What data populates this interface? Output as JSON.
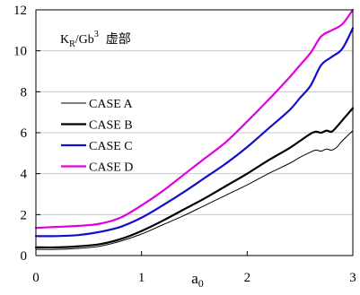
{
  "chart_data": {
    "type": "line",
    "title": "",
    "annotation": {
      "base": "K",
      "subscript": "R",
      "after": "/Gb",
      "superscript": "3",
      "suffix": "虚部"
    },
    "xlabel": {
      "base": "a",
      "subscript": "0"
    },
    "ylabel": "",
    "xlim": [
      0,
      3
    ],
    "ylim": [
      0,
      12
    ],
    "x_ticks": [
      0,
      1,
      2,
      3
    ],
    "y_ticks": [
      0,
      2,
      4,
      6,
      8,
      10,
      12
    ],
    "x_tick_labels": [
      "0",
      "1",
      "2",
      "3"
    ],
    "y_tick_labels": [
      "0",
      "2",
      "4",
      "6",
      "8",
      "10",
      "12"
    ],
    "grid": "horizontal",
    "legend_position": "left-middle",
    "series": [
      {
        "name": "CASE A",
        "color": "#000000",
        "width": 1,
        "x": [
          0,
          0.2,
          0.4,
          0.6,
          0.8,
          1.0,
          1.2,
          1.4,
          1.6,
          1.8,
          2.0,
          2.2,
          2.4,
          2.5,
          2.6,
          2.65,
          2.7,
          2.75,
          2.8,
          2.85,
          2.9,
          3.0
        ],
        "y": [
          0.3,
          0.3,
          0.35,
          0.45,
          0.7,
          1.05,
          1.5,
          1.95,
          2.45,
          2.95,
          3.45,
          4.0,
          4.5,
          4.8,
          5.05,
          5.15,
          5.1,
          5.2,
          5.15,
          5.3,
          5.6,
          6.1
        ]
      },
      {
        "name": "CASE B",
        "color": "#000000",
        "width": 2.2,
        "x": [
          0,
          0.2,
          0.4,
          0.6,
          0.8,
          1.0,
          1.2,
          1.4,
          1.6,
          1.8,
          2.0,
          2.2,
          2.4,
          2.5,
          2.6,
          2.65,
          2.7,
          2.75,
          2.8,
          2.85,
          2.9,
          3.0
        ],
        "y": [
          0.4,
          0.4,
          0.45,
          0.55,
          0.8,
          1.2,
          1.7,
          2.25,
          2.8,
          3.4,
          4.0,
          4.65,
          5.25,
          5.6,
          5.95,
          6.05,
          6.0,
          6.1,
          6.05,
          6.3,
          6.6,
          7.2
        ]
      },
      {
        "name": "CASE C",
        "color": "#1010cc",
        "width": 2.2,
        "x": [
          0,
          0.2,
          0.4,
          0.6,
          0.8,
          1.0,
          1.2,
          1.4,
          1.6,
          1.8,
          2.0,
          2.2,
          2.4,
          2.5,
          2.6,
          2.7,
          2.8,
          2.9,
          3.0
        ],
        "y": [
          0.95,
          0.95,
          1.0,
          1.15,
          1.4,
          1.85,
          2.45,
          3.1,
          3.8,
          4.5,
          5.3,
          6.2,
          7.1,
          7.7,
          8.3,
          9.3,
          9.7,
          10.1,
          11.1
        ]
      },
      {
        "name": "CASE D",
        "color": "#e000e0",
        "width": 2.2,
        "x": [
          0,
          0.2,
          0.4,
          0.6,
          0.8,
          1.0,
          1.2,
          1.4,
          1.6,
          1.8,
          2.0,
          2.2,
          2.4,
          2.5,
          2.6,
          2.7,
          2.8,
          2.9,
          3.0
        ],
        "y": [
          1.35,
          1.4,
          1.45,
          1.55,
          1.85,
          2.45,
          3.15,
          3.95,
          4.75,
          5.55,
          6.55,
          7.6,
          8.7,
          9.3,
          9.9,
          10.7,
          11.0,
          11.3,
          12.0
        ]
      }
    ]
  }
}
